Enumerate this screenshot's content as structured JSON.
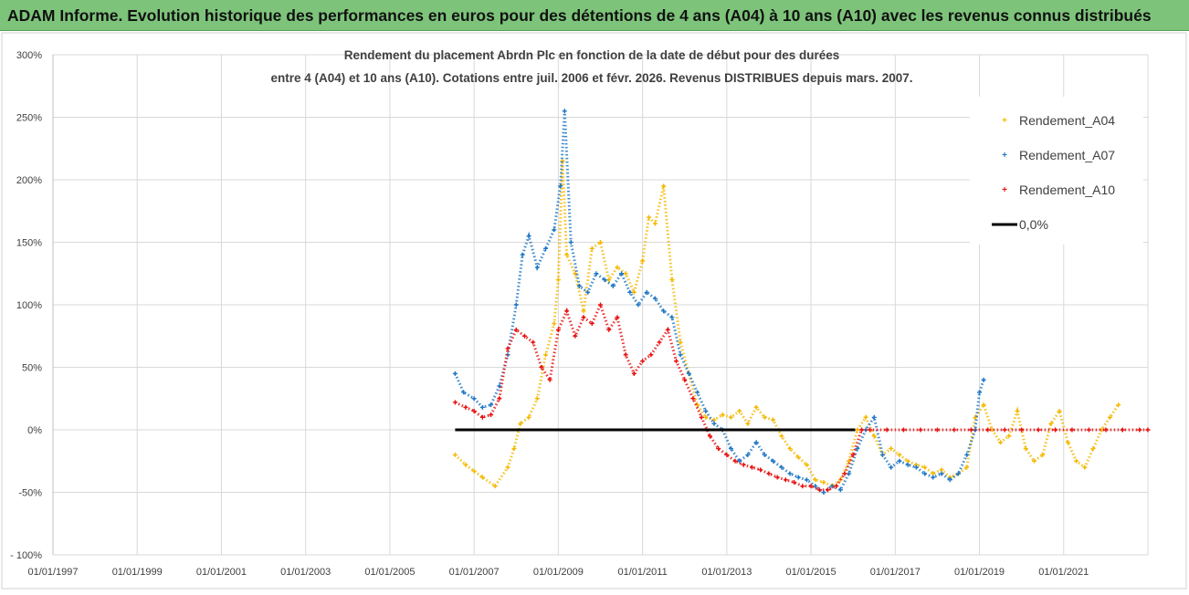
{
  "banner": {
    "title": "ADAM Informe. Evolution historique des performances en euros pour des détentions de 4 ans (A04) à 10 ans (A10) avec les revenus connus distribués"
  },
  "chart_data": {
    "type": "scatter",
    "title_line1": "Rendement du placement Abrdn Plc en fonction de la date de début pour des durées",
    "title_line2": "entre 4 (A04) et 10 ans (A10). Cotations entre juil. 2006 et févr. 2026. Revenus DISTRIBUES depuis mars. 2007.",
    "x_range": [
      1997.0,
      2023.0
    ],
    "ylim": [
      -100,
      300
    ],
    "y_ticks": [
      -100,
      -50,
      0,
      50,
      100,
      150,
      200,
      250,
      300
    ],
    "y_tick_labels": [
      "- 100%",
      "-50%",
      "0%",
      "50%",
      "100%",
      "150%",
      "200%",
      "250%",
      "300%"
    ],
    "x_ticks": [
      1997,
      1999,
      2001,
      2003,
      2005,
      2007,
      2009,
      2011,
      2013,
      2015,
      2017,
      2019,
      2021
    ],
    "x_tick_labels": [
      "01/01/1997",
      "01/01/1999",
      "01/01/2001",
      "01/01/2003",
      "01/01/2005",
      "01/01/2007",
      "01/01/2009",
      "01/01/2011",
      "01/01/2013",
      "01/01/2015",
      "01/01/2017",
      "01/01/2019",
      "01/01/2021"
    ],
    "grid": true,
    "legend_position": "top-right",
    "series": [
      {
        "name": "Rendement_A04",
        "color": "#f5b800",
        "marker": "+",
        "x": [
          2006.55,
          2006.8,
          2007.0,
          2007.2,
          2007.5,
          2007.8,
          2007.95,
          2008.1,
          2008.3,
          2008.5,
          2008.7,
          2008.9,
          2009.0,
          2009.1,
          2009.2,
          2009.4,
          2009.6,
          2009.8,
          2010.0,
          2010.2,
          2010.4,
          2010.6,
          2010.8,
          2011.0,
          2011.15,
          2011.3,
          2011.5,
          2011.7,
          2011.9,
          2012.1,
          2012.3,
          2012.5,
          2012.7,
          2012.9,
          2013.1,
          2013.3,
          2013.5,
          2013.7,
          2013.9,
          2014.1,
          2014.3,
          2014.5,
          2014.7,
          2014.9,
          2015.1,
          2015.3,
          2015.5,
          2015.7,
          2015.9,
          2016.1,
          2016.3,
          2016.5,
          2016.7,
          2016.9,
          2017.1,
          2017.3,
          2017.5,
          2017.7,
          2017.9,
          2018.1,
          2018.3,
          2018.5,
          2018.7,
          2018.9,
          2019.1,
          2019.3,
          2019.5,
          2019.7,
          2019.9,
          2020.1,
          2020.3,
          2020.5,
          2020.7,
          2020.9,
          2021.1,
          2021.3,
          2021.5,
          2021.7,
          2021.9,
          2022.1,
          2022.3
        ],
        "y": [
          -20,
          -28,
          -33,
          -38,
          -45,
          -30,
          -15,
          5,
          10,
          25,
          60,
          85,
          120,
          215,
          140,
          125,
          95,
          145,
          150,
          120,
          130,
          125,
          110,
          135,
          170,
          165,
          195,
          120,
          70,
          45,
          20,
          10,
          8,
          12,
          10,
          15,
          5,
          18,
          10,
          8,
          -5,
          -15,
          -22,
          -28,
          -40,
          -42,
          -45,
          -40,
          -25,
          0,
          10,
          -5,
          -20,
          -15,
          -20,
          -25,
          -28,
          -30,
          -35,
          -32,
          -38,
          -35,
          -30,
          10,
          20,
          0,
          -10,
          -5,
          15,
          -15,
          -25,
          -20,
          5,
          15,
          -10,
          -25,
          -30,
          -15,
          0,
          10,
          20
        ]
      },
      {
        "name": "Rendement_A07",
        "color": "#1f77c4",
        "marker": "+",
        "x": [
          2006.55,
          2006.75,
          2007.0,
          2007.2,
          2007.4,
          2007.6,
          2007.8,
          2008.0,
          2008.15,
          2008.3,
          2008.5,
          2008.7,
          2008.9,
          2009.05,
          2009.15,
          2009.3,
          2009.5,
          2009.7,
          2009.9,
          2010.1,
          2010.3,
          2010.5,
          2010.7,
          2010.9,
          2011.1,
          2011.3,
          2011.5,
          2011.7,
          2011.9,
          2012.1,
          2012.3,
          2012.5,
          2012.7,
          2012.9,
          2013.1,
          2013.3,
          2013.5,
          2013.7,
          2013.9,
          2014.1,
          2014.3,
          2014.5,
          2014.7,
          2014.9,
          2015.1,
          2015.3,
          2015.5,
          2015.7,
          2015.9,
          2016.1,
          2016.3,
          2016.5,
          2016.7,
          2016.9,
          2017.1,
          2017.3,
          2017.5,
          2017.7,
          2017.9,
          2018.1,
          2018.3,
          2018.5,
          2018.7,
          2018.9,
          2019.0,
          2019.1
        ],
        "y": [
          45,
          30,
          25,
          18,
          20,
          35,
          60,
          100,
          140,
          155,
          130,
          145,
          160,
          195,
          255,
          150,
          115,
          110,
          125,
          120,
          115,
          125,
          110,
          100,
          110,
          105,
          95,
          90,
          60,
          45,
          30,
          15,
          5,
          0,
          -15,
          -25,
          -20,
          -10,
          -20,
          -25,
          -30,
          -35,
          -38,
          -40,
          -45,
          -50,
          -45,
          -48,
          -35,
          -15,
          0,
          10,
          -20,
          -30,
          -25,
          -28,
          -30,
          -35,
          -38,
          -35,
          -40,
          -35,
          -20,
          0,
          30,
          40
        ]
      },
      {
        "name": "Rendement_A10",
        "color": "#e81010",
        "marker": "+",
        "x": [
          2006.55,
          2006.8,
          2007.0,
          2007.2,
          2007.4,
          2007.6,
          2007.8,
          2008.0,
          2008.2,
          2008.4,
          2008.6,
          2008.8,
          2009.0,
          2009.2,
          2009.4,
          2009.6,
          2009.8,
          2010.0,
          2010.2,
          2010.4,
          2010.6,
          2010.8,
          2011.0,
          2011.2,
          2011.4,
          2011.6,
          2011.8,
          2012.0,
          2012.2,
          2012.4,
          2012.6,
          2012.8,
          2013.0,
          2013.2,
          2013.4,
          2013.6,
          2013.8,
          2014.0,
          2014.2,
          2014.4,
          2014.6,
          2014.8,
          2015.0,
          2015.2,
          2015.4,
          2015.6,
          2015.8,
          2016.0,
          2016.2,
          2016.4,
          2016.8,
          2017.2,
          2017.6,
          2018.0,
          2018.4,
          2018.8,
          2019.2,
          2019.6,
          2020.0,
          2020.4,
          2020.8,
          2021.2,
          2021.6,
          2022.0,
          2022.4,
          2022.8,
          2023.0
        ],
        "y": [
          22,
          18,
          15,
          10,
          12,
          25,
          65,
          80,
          75,
          70,
          50,
          40,
          80,
          95,
          75,
          90,
          85,
          100,
          80,
          90,
          60,
          45,
          55,
          60,
          70,
          80,
          55,
          40,
          25,
          10,
          -5,
          -15,
          -20,
          -25,
          -28,
          -30,
          -32,
          -35,
          -38,
          -40,
          -42,
          -45,
          -45,
          -48,
          -48,
          -45,
          -35,
          -20,
          0,
          0,
          0,
          0,
          0,
          0,
          0,
          0,
          0,
          0,
          0,
          0,
          0,
          0,
          0,
          0,
          0,
          0,
          0
        ]
      },
      {
        "name": "0,0%",
        "color": "#000000",
        "marker": "line",
        "x": [
          2006.55,
          2016.05
        ],
        "y": [
          0,
          0
        ]
      }
    ]
  }
}
